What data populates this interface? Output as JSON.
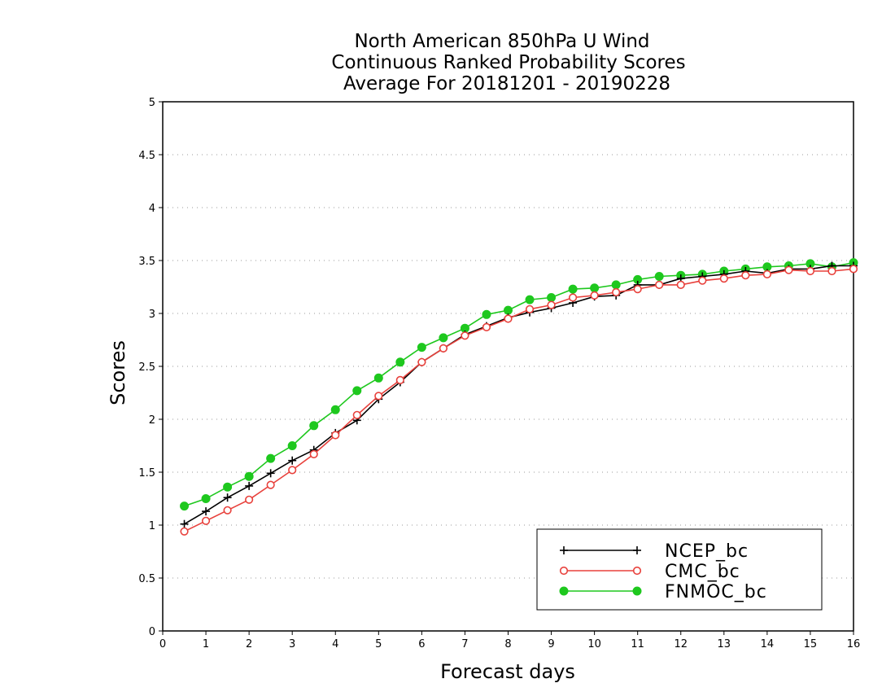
{
  "chart_data": {
    "type": "line",
    "title": [
      "North American 850hPa U Wind",
      "Continuous Ranked Probability Scores",
      "Average For 20181201 - 20190228"
    ],
    "xlabel": "Forecast days",
    "ylabel": "Scores",
    "xlim": [
      0,
      16
    ],
    "ylim": [
      0,
      5
    ],
    "xticks": [
      "0",
      "1",
      "2",
      "3",
      "4",
      "5",
      "6",
      "7",
      "8",
      "9",
      "10",
      "11",
      "12",
      "13",
      "14",
      "15",
      "16"
    ],
    "yticks": [
      "0",
      "0.5",
      "1",
      "1.5",
      "2",
      "2.5",
      "3",
      "3.5",
      "4",
      "4.5",
      "5"
    ],
    "grid": "horizontal dotted",
    "legend_position": "bottom-right",
    "x": [
      0.5,
      1,
      1.5,
      2,
      2.5,
      3,
      3.5,
      4,
      4.5,
      5,
      5.5,
      6,
      6.5,
      7,
      7.5,
      8,
      8.5,
      9,
      9.5,
      10,
      10.5,
      11,
      11.5,
      12,
      12.5,
      13,
      13.5,
      14,
      14.5,
      15,
      15.5,
      16
    ],
    "series": [
      {
        "name": "NCEP_bc",
        "color": "#000000",
        "marker": "plus",
        "values": [
          1.01,
          1.13,
          1.26,
          1.37,
          1.49,
          1.61,
          1.71,
          1.87,
          1.99,
          2.19,
          2.35,
          2.54,
          2.67,
          2.8,
          2.88,
          2.96,
          3.01,
          3.05,
          3.1,
          3.16,
          3.17,
          3.27,
          3.27,
          3.33,
          3.35,
          3.37,
          3.4,
          3.38,
          3.42,
          3.42,
          3.45,
          3.45
        ]
      },
      {
        "name": "CMC_bc",
        "color": "#e8413c",
        "marker": "open-circle",
        "values": [
          0.94,
          1.04,
          1.14,
          1.24,
          1.38,
          1.52,
          1.67,
          1.85,
          2.04,
          2.22,
          2.37,
          2.54,
          2.67,
          2.79,
          2.87,
          2.95,
          3.04,
          3.08,
          3.15,
          3.17,
          3.2,
          3.23,
          3.27,
          3.27,
          3.31,
          3.33,
          3.36,
          3.37,
          3.41,
          3.4,
          3.4,
          3.42
        ]
      },
      {
        "name": "FNMOC_bc",
        "color": "#1ec81e",
        "marker": "filled-circle",
        "values": [
          1.18,
          1.25,
          1.36,
          1.46,
          1.63,
          1.75,
          1.94,
          2.09,
          2.27,
          2.39,
          2.54,
          2.68,
          2.77,
          2.86,
          2.99,
          3.03,
          3.13,
          3.15,
          3.23,
          3.24,
          3.27,
          3.32,
          3.35,
          3.36,
          3.37,
          3.4,
          3.42,
          3.44,
          3.45,
          3.47,
          3.44,
          3.48
        ]
      }
    ]
  }
}
